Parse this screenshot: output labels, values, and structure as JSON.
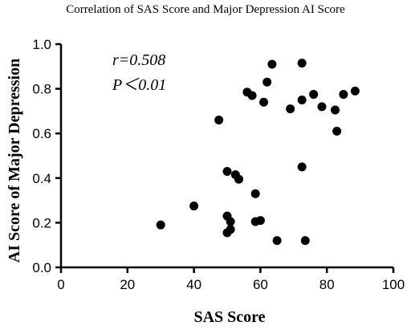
{
  "chart_data": {
    "type": "scatter",
    "title": "Correlation of SAS Score and Major Depression AI Score",
    "xlabel": "SAS Score",
    "ylabel": "AI Score of Major Depression",
    "xlim": [
      0,
      100
    ],
    "ylim": [
      0,
      1.0
    ],
    "xticks": [
      "0",
      "20",
      "40",
      "60",
      "80",
      "100"
    ],
    "yticks": [
      "0.0",
      "0.2",
      "0.4",
      "0.6",
      "0.8",
      "1.0"
    ],
    "grid": false,
    "annotations": [
      "r=0.508",
      "P＜0.01"
    ],
    "points": [
      {
        "x": 30,
        "y": 0.19
      },
      {
        "x": 40,
        "y": 0.275
      },
      {
        "x": 47.5,
        "y": 0.66
      },
      {
        "x": 50,
        "y": 0.43
      },
      {
        "x": 50,
        "y": 0.23
      },
      {
        "x": 50,
        "y": 0.155
      },
      {
        "x": 51,
        "y": 0.205
      },
      {
        "x": 51,
        "y": 0.17
      },
      {
        "x": 52.5,
        "y": 0.415
      },
      {
        "x": 53.5,
        "y": 0.395
      },
      {
        "x": 56,
        "y": 0.785
      },
      {
        "x": 57.5,
        "y": 0.77
      },
      {
        "x": 58.5,
        "y": 0.33
      },
      {
        "x": 58.5,
        "y": 0.205
      },
      {
        "x": 60,
        "y": 0.21
      },
      {
        "x": 61,
        "y": 0.74
      },
      {
        "x": 62,
        "y": 0.83
      },
      {
        "x": 63.5,
        "y": 0.91
      },
      {
        "x": 65,
        "y": 0.12
      },
      {
        "x": 69,
        "y": 0.71
      },
      {
        "x": 72.5,
        "y": 0.915
      },
      {
        "x": 72.5,
        "y": 0.75
      },
      {
        "x": 72.5,
        "y": 0.45
      },
      {
        "x": 73.5,
        "y": 0.12
      },
      {
        "x": 76,
        "y": 0.775
      },
      {
        "x": 78.5,
        "y": 0.72
      },
      {
        "x": 82.5,
        "y": 0.705
      },
      {
        "x": 83,
        "y": 0.61
      },
      {
        "x": 85,
        "y": 0.775
      },
      {
        "x": 88.5,
        "y": 0.79
      }
    ]
  },
  "colors": {
    "points": "#000000",
    "axis": "#000000",
    "text": "#000000"
  }
}
